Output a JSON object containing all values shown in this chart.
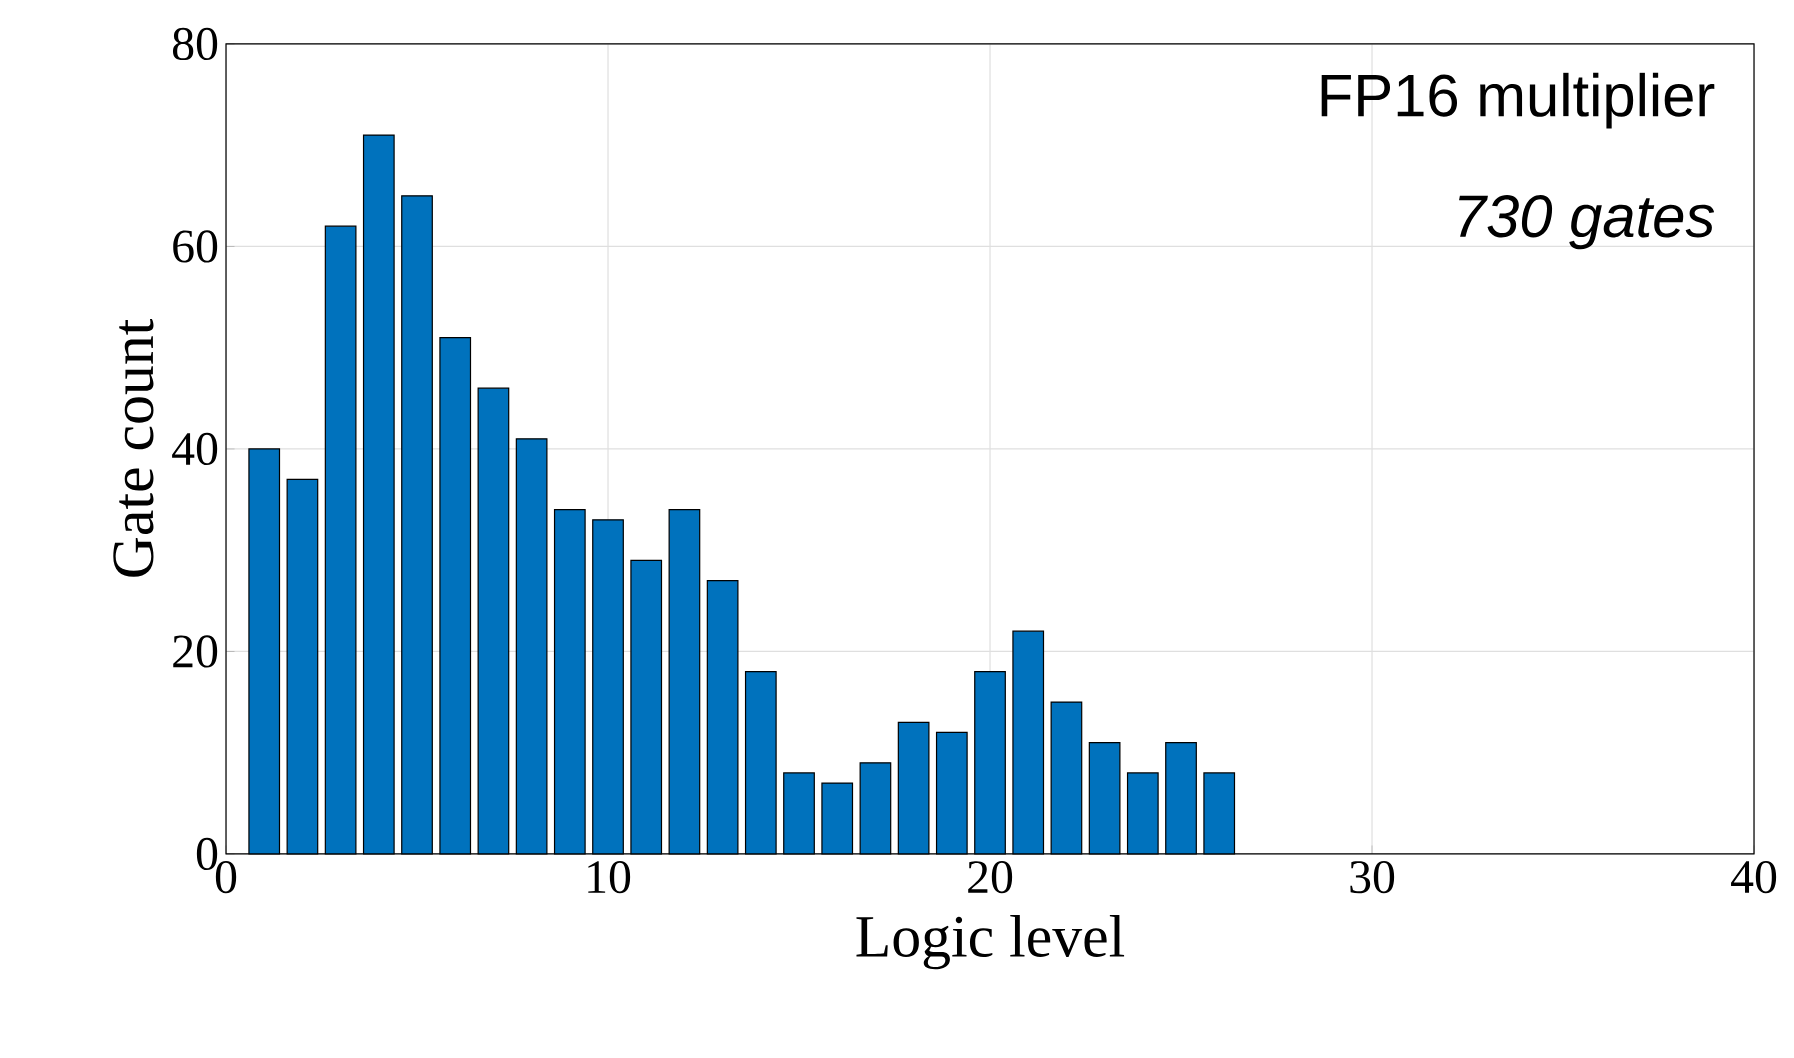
{
  "chart_data": {
    "type": "bar",
    "xlabel": "Logic level",
    "ylabel": "Gate count",
    "x": [
      1,
      2,
      3,
      4,
      5,
      6,
      7,
      8,
      9,
      10,
      11,
      12,
      13,
      14,
      15,
      16,
      17,
      18,
      19,
      20,
      21,
      22,
      23,
      24,
      25,
      26
    ],
    "values": [
      40,
      37,
      62,
      71,
      65,
      51,
      46,
      41,
      34,
      33,
      29,
      34,
      27,
      18,
      8,
      7,
      9,
      13,
      12,
      18,
      22,
      15,
      11,
      8,
      11,
      8
    ],
    "color": "#0072bd",
    "xlim": [
      0,
      40
    ],
    "xticks": [
      0,
      10,
      20,
      30,
      40
    ],
    "ylim": [
      0,
      80
    ],
    "yticks": [
      0,
      20,
      40,
      60,
      80
    ],
    "grid": true,
    "annotations": [
      "FP16 multiplier",
      "730 gates"
    ]
  }
}
